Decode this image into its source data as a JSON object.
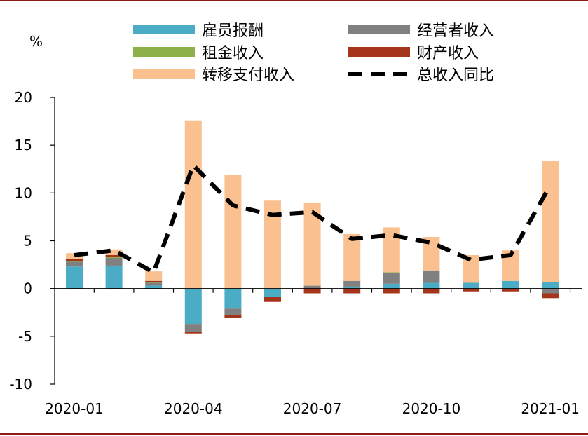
{
  "chart_data": {
    "type": "bar",
    "stacked": true,
    "unit": "%",
    "ylim": [
      -10,
      20
    ],
    "yticks": [
      "20",
      "15",
      "10",
      "5",
      "0",
      "-5",
      "-10"
    ],
    "xtick_labels": [
      "2020-01",
      "2020-04",
      "2020-07",
      "2020-10",
      "2021-01"
    ],
    "categories": [
      "2020-01",
      "2020-02",
      "2020-03",
      "2020-04",
      "2020-05",
      "2020-06",
      "2020-07",
      "2020-08",
      "2020-09",
      "2020-10",
      "2020-11",
      "2020-12",
      "2021-01"
    ],
    "series": [
      {
        "name": "雇员报酬",
        "color": "#4bacc6",
        "values": [
          2.3,
          2.4,
          0.3,
          -3.7,
          -2.1,
          -0.9,
          0.0,
          0.2,
          0.5,
          0.6,
          0.6,
          0.8,
          0.7
        ]
      },
      {
        "name": "经营者收入",
        "color": "#808080",
        "values": [
          0.5,
          0.8,
          0.3,
          -0.8,
          -0.7,
          0.0,
          0.3,
          0.6,
          1.1,
          1.3,
          0.0,
          -0.1,
          -0.5
        ]
      },
      {
        "name": "租金收入",
        "color": "#8db04a",
        "values": [
          0.1,
          0.1,
          0.1,
          0.0,
          0.0,
          0.0,
          0.0,
          0.0,
          0.1,
          0.0,
          0.0,
          0.0,
          0.0
        ]
      },
      {
        "name": "财产收入",
        "color": "#a5351a",
        "values": [
          0.2,
          0.2,
          0.1,
          -0.2,
          -0.3,
          -0.5,
          -0.5,
          -0.5,
          -0.5,
          -0.5,
          -0.3,
          -0.2,
          -0.5
        ]
      },
      {
        "name": "转移支付收入",
        "color": "#fac090",
        "values": [
          0.6,
          0.6,
          1.0,
          17.6,
          11.9,
          9.2,
          8.7,
          4.9,
          4.7,
          3.5,
          2.9,
          3.2,
          12.7
        ]
      }
    ],
    "line_series": {
      "name": "总收入同比",
      "color": "#000000",
      "values": [
        3.5,
        4.0,
        1.7,
        12.9,
        8.7,
        7.7,
        8.0,
        5.2,
        5.6,
        4.8,
        3.0,
        3.5,
        10.8
      ]
    },
    "legend": [
      {
        "label": "雇员报酬",
        "kind": "bar",
        "color": "#4bacc6"
      },
      {
        "label": "经营者收入",
        "kind": "bar",
        "color": "#808080"
      },
      {
        "label": "租金收入",
        "kind": "bar",
        "color": "#8db04a"
      },
      {
        "label": "财产收入",
        "kind": "bar",
        "color": "#a5351a"
      },
      {
        "label": "转移支付收入",
        "kind": "bar",
        "color": "#fac090"
      },
      {
        "label": "总收入同比",
        "kind": "dashed-line",
        "color": "#000000"
      }
    ]
  }
}
